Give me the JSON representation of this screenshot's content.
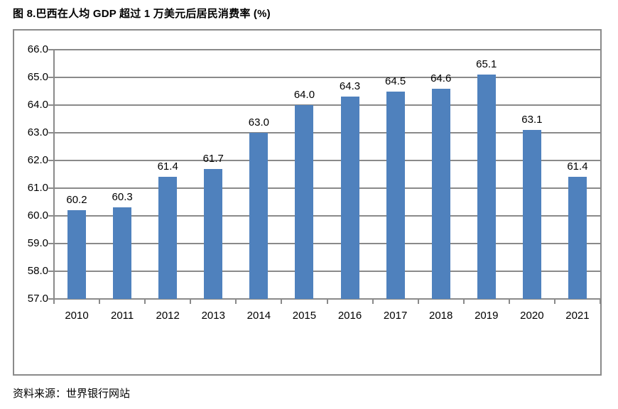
{
  "title": "图 8.巴西在人均 GDP 超过 1 万美元后居民消费率 (%)",
  "source": "资料来源：世界银行网站",
  "colors": {
    "bar": "#4F81BD",
    "grid": "#8A8A8A",
    "text": "#000000",
    "background": "#FFFFFF"
  },
  "chart_data": {
    "type": "bar",
    "title": "图 8.巴西在人均 GDP 超过 1 万美元后居民消费率 (%)",
    "categories": [
      "2010",
      "2011",
      "2012",
      "2013",
      "2014",
      "2015",
      "2016",
      "2017",
      "2018",
      "2019",
      "2020",
      "2021"
    ],
    "values": [
      60.2,
      60.3,
      61.4,
      61.7,
      63.0,
      64.0,
      64.3,
      64.5,
      64.6,
      65.1,
      63.1,
      61.4
    ],
    "data_labels": [
      "60.2",
      "60.3",
      "61.4",
      "61.7",
      "63.0",
      "64.0",
      "64.3",
      "64.5",
      "64.6",
      "65.1",
      "63.1",
      "61.4"
    ],
    "xlabel": "",
    "ylabel": "",
    "ylim": [
      57.0,
      66.0
    ],
    "ytick_step": 1.0,
    "ytick_labels": [
      "66.0",
      "65.0",
      "64.0",
      "63.0",
      "62.0",
      "61.0",
      "60.0",
      "59.0",
      "58.0",
      "57.0"
    ],
    "grid": true,
    "legend": false,
    "source_note": "资料来源：世界银行网站"
  }
}
